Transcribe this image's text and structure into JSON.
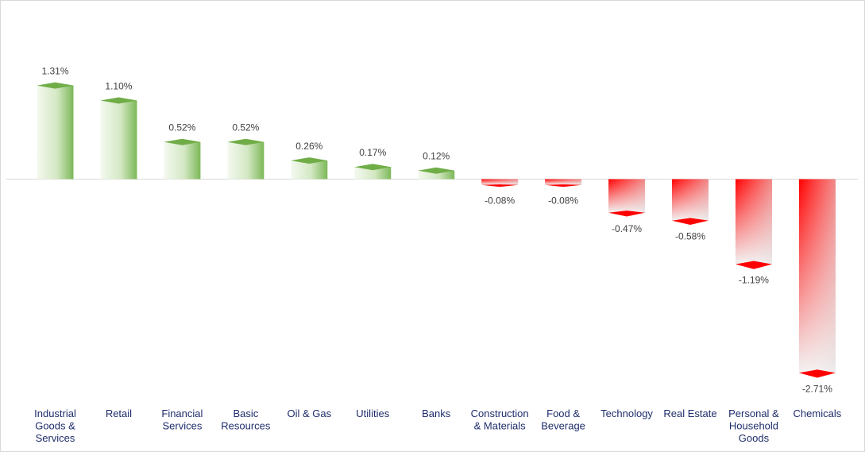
{
  "chart_data": {
    "type": "bar",
    "title": "",
    "xlabel": "",
    "ylabel": "",
    "grid": false,
    "legend": "none",
    "categories": [
      [
        "Industrial",
        "Goods &",
        "Services"
      ],
      [
        "Retail"
      ],
      [
        "Financial",
        "Services"
      ],
      [
        "Basic",
        "Resources"
      ],
      [
        "Oil & Gas"
      ],
      [
        "Utilities"
      ],
      [
        "Banks"
      ],
      [
        "Construction",
        "& Materials"
      ],
      [
        "Food &",
        "Beverage"
      ],
      [
        "Technology"
      ],
      [
        "Real Estate"
      ],
      [
        "Personal &",
        "Household",
        "Goods"
      ],
      [
        "Chemicals"
      ]
    ],
    "values": [
      1.31,
      1.1,
      0.52,
      0.52,
      0.26,
      0.17,
      0.12,
      -0.08,
      -0.08,
      -0.47,
      -0.58,
      -1.19,
      -2.71
    ],
    "labels": [
      "1.31%",
      "1.10%",
      "0.52%",
      "0.52%",
      "0.26%",
      "0.17%",
      "0.12%",
      "-0.08%",
      "-0.08%",
      "-0.47%",
      "-0.58%",
      "-1.19%",
      "-2.71%"
    ],
    "colors": {
      "positive": "#70ad47",
      "positive_light": "#e2efda",
      "negative": "#ff0000",
      "negative_light": "#e7e6e6",
      "axis": "#d9d9d9",
      "category_text": "#1f2d6b",
      "value_text": "#404040"
    }
  }
}
